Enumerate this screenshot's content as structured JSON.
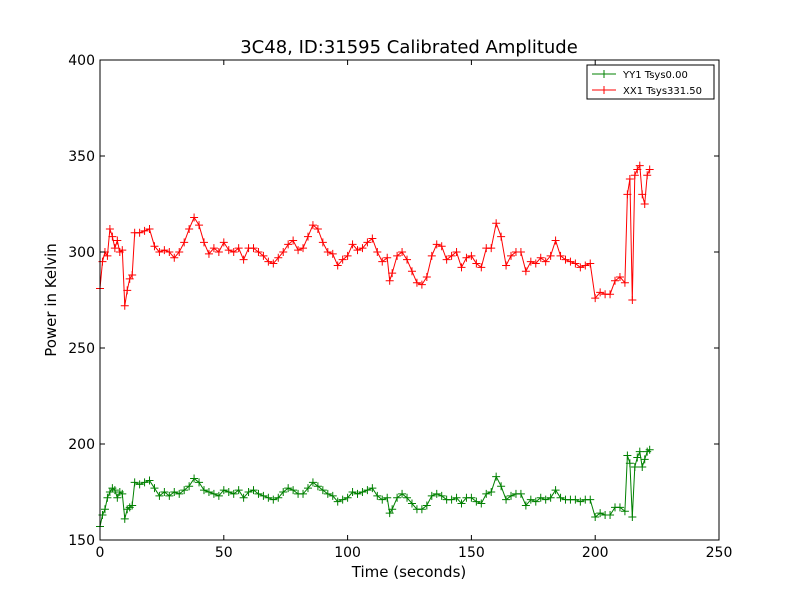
{
  "chart_data": {
    "type": "line",
    "title": "3C48, ID:31595 Calibrated Amplitude",
    "xlabel": "Time (seconds)",
    "ylabel": "Power in Kelvin",
    "xlim": [
      0,
      250
    ],
    "ylim": [
      150,
      400
    ],
    "xticks": [
      0,
      50,
      100,
      150,
      200,
      250
    ],
    "yticks": [
      150,
      200,
      250,
      300,
      350,
      400
    ],
    "xtick_labels": [
      "0",
      "50",
      "100",
      "150",
      "200",
      "250"
    ],
    "ytick_labels": [
      "150",
      "200",
      "250",
      "300",
      "350",
      "400"
    ],
    "grid": false,
    "legend_position": "top-right",
    "marker": "plus",
    "series": [
      {
        "name": "YY1 Tsys0.00",
        "color": "#008000",
        "points": [
          [
            0,
            157
          ],
          [
            1,
            163
          ],
          [
            2,
            166
          ],
          [
            3,
            172
          ],
          [
            4,
            175
          ],
          [
            5,
            177
          ],
          [
            6,
            176
          ],
          [
            7,
            172
          ],
          [
            8,
            175
          ],
          [
            9,
            174
          ],
          [
            10,
            161
          ],
          [
            11,
            166
          ],
          [
            12,
            167
          ],
          [
            13,
            168
          ],
          [
            14,
            180
          ],
          [
            16,
            179
          ],
          [
            18,
            180
          ],
          [
            20,
            181
          ],
          [
            22,
            177
          ],
          [
            24,
            173
          ],
          [
            26,
            175
          ],
          [
            28,
            173
          ],
          [
            30,
            175
          ],
          [
            32,
            174
          ],
          [
            34,
            176
          ],
          [
            36,
            178
          ],
          [
            38,
            182
          ],
          [
            40,
            180
          ],
          [
            42,
            176
          ],
          [
            44,
            175
          ],
          [
            46,
            174
          ],
          [
            48,
            173
          ],
          [
            50,
            176
          ],
          [
            52,
            175
          ],
          [
            54,
            174
          ],
          [
            56,
            176
          ],
          [
            58,
            172
          ],
          [
            60,
            175
          ],
          [
            62,
            176
          ],
          [
            64,
            174
          ],
          [
            66,
            173
          ],
          [
            68,
            172
          ],
          [
            70,
            171
          ],
          [
            72,
            172
          ],
          [
            74,
            175
          ],
          [
            76,
            177
          ],
          [
            78,
            176
          ],
          [
            80,
            174
          ],
          [
            82,
            174
          ],
          [
            84,
            177
          ],
          [
            86,
            180
          ],
          [
            88,
            178
          ],
          [
            90,
            176
          ],
          [
            92,
            174
          ],
          [
            94,
            173
          ],
          [
            96,
            170
          ],
          [
            98,
            171
          ],
          [
            100,
            172
          ],
          [
            102,
            175
          ],
          [
            104,
            174
          ],
          [
            106,
            175
          ],
          [
            108,
            176
          ],
          [
            110,
            177
          ],
          [
            112,
            173
          ],
          [
            114,
            171
          ],
          [
            116,
            172
          ],
          [
            117,
            164
          ],
          [
            118,
            166
          ],
          [
            120,
            172
          ],
          [
            122,
            174
          ],
          [
            124,
            172
          ],
          [
            126,
            169
          ],
          [
            128,
            166
          ],
          [
            130,
            166
          ],
          [
            132,
            168
          ],
          [
            134,
            173
          ],
          [
            136,
            174
          ],
          [
            138,
            173
          ],
          [
            140,
            171
          ],
          [
            142,
            171
          ],
          [
            144,
            172
          ],
          [
            146,
            169
          ],
          [
            148,
            172
          ],
          [
            150,
            172
          ],
          [
            152,
            170
          ],
          [
            154,
            169
          ],
          [
            156,
            174
          ],
          [
            158,
            175
          ],
          [
            160,
            183
          ],
          [
            162,
            178
          ],
          [
            164,
            171
          ],
          [
            166,
            173
          ],
          [
            168,
            174
          ],
          [
            170,
            174
          ],
          [
            172,
            168
          ],
          [
            174,
            171
          ],
          [
            176,
            170
          ],
          [
            178,
            172
          ],
          [
            180,
            171
          ],
          [
            182,
            172
          ],
          [
            184,
            176
          ],
          [
            186,
            172
          ],
          [
            188,
            171
          ],
          [
            190,
            171
          ],
          [
            192,
            171
          ],
          [
            194,
            170
          ],
          [
            196,
            171
          ],
          [
            198,
            171
          ],
          [
            200,
            162
          ],
          [
            202,
            164
          ],
          [
            204,
            163
          ],
          [
            206,
            163
          ],
          [
            208,
            167
          ],
          [
            210,
            167
          ],
          [
            212,
            165
          ],
          [
            213,
            194
          ],
          [
            214,
            190
          ],
          [
            215,
            162
          ],
          [
            216,
            188
          ],
          [
            217,
            193
          ],
          [
            218,
            196
          ],
          [
            219,
            188
          ],
          [
            220,
            192
          ],
          [
            221,
            196
          ],
          [
            222,
            197
          ]
        ]
      },
      {
        "name": "XX1 Tsys331.50",
        "color": "#ff0000",
        "points": [
          [
            0,
            281
          ],
          [
            1,
            295
          ],
          [
            2,
            300
          ],
          [
            3,
            298
          ],
          [
            4,
            312
          ],
          [
            5,
            308
          ],
          [
            6,
            302
          ],
          [
            7,
            306
          ],
          [
            8,
            300
          ],
          [
            9,
            301
          ],
          [
            10,
            272
          ],
          [
            11,
            280
          ],
          [
            12,
            286
          ],
          [
            13,
            288
          ],
          [
            14,
            310
          ],
          [
            16,
            310
          ],
          [
            18,
            311
          ],
          [
            20,
            312
          ],
          [
            22,
            303
          ],
          [
            24,
            300
          ],
          [
            26,
            301
          ],
          [
            28,
            300
          ],
          [
            30,
            297
          ],
          [
            32,
            300
          ],
          [
            34,
            305
          ],
          [
            36,
            312
          ],
          [
            38,
            318
          ],
          [
            40,
            314
          ],
          [
            42,
            305
          ],
          [
            44,
            299
          ],
          [
            46,
            302
          ],
          [
            48,
            300
          ],
          [
            50,
            305
          ],
          [
            52,
            301
          ],
          [
            54,
            300
          ],
          [
            56,
            302
          ],
          [
            58,
            296
          ],
          [
            60,
            302
          ],
          [
            62,
            302
          ],
          [
            64,
            300
          ],
          [
            66,
            298
          ],
          [
            68,
            295
          ],
          [
            70,
            294
          ],
          [
            72,
            297
          ],
          [
            74,
            300
          ],
          [
            76,
            304
          ],
          [
            78,
            306
          ],
          [
            80,
            301
          ],
          [
            82,
            302
          ],
          [
            84,
            308
          ],
          [
            86,
            314
          ],
          [
            88,
            312
          ],
          [
            90,
            305
          ],
          [
            92,
            300
          ],
          [
            94,
            299
          ],
          [
            96,
            293
          ],
          [
            98,
            296
          ],
          [
            100,
            298
          ],
          [
            102,
            304
          ],
          [
            104,
            301
          ],
          [
            106,
            302
          ],
          [
            108,
            305
          ],
          [
            110,
            307
          ],
          [
            112,
            300
          ],
          [
            114,
            295
          ],
          [
            116,
            297
          ],
          [
            117,
            285
          ],
          [
            118,
            289
          ],
          [
            120,
            298
          ],
          [
            122,
            300
          ],
          [
            124,
            296
          ],
          [
            126,
            290
          ],
          [
            128,
            284
          ],
          [
            130,
            283
          ],
          [
            132,
            287
          ],
          [
            134,
            298
          ],
          [
            136,
            304
          ],
          [
            138,
            303
          ],
          [
            140,
            296
          ],
          [
            142,
            298
          ],
          [
            144,
            300
          ],
          [
            146,
            292
          ],
          [
            148,
            297
          ],
          [
            150,
            298
          ],
          [
            152,
            294
          ],
          [
            154,
            292
          ],
          [
            156,
            302
          ],
          [
            158,
            302
          ],
          [
            160,
            315
          ],
          [
            162,
            308
          ],
          [
            164,
            293
          ],
          [
            166,
            298
          ],
          [
            168,
            300
          ],
          [
            170,
            300
          ],
          [
            172,
            290
          ],
          [
            174,
            295
          ],
          [
            176,
            294
          ],
          [
            178,
            297
          ],
          [
            180,
            295
          ],
          [
            182,
            298
          ],
          [
            184,
            306
          ],
          [
            186,
            298
          ],
          [
            188,
            296
          ],
          [
            190,
            295
          ],
          [
            192,
            294
          ],
          [
            194,
            292
          ],
          [
            196,
            293
          ],
          [
            198,
            294
          ],
          [
            200,
            276
          ],
          [
            202,
            279
          ],
          [
            204,
            278
          ],
          [
            206,
            278
          ],
          [
            208,
            285
          ],
          [
            210,
            287
          ],
          [
            212,
            284
          ],
          [
            213,
            330
          ],
          [
            214,
            338
          ],
          [
            215,
            275
          ],
          [
            216,
            340
          ],
          [
            217,
            343
          ],
          [
            218,
            345
          ],
          [
            219,
            330
          ],
          [
            220,
            325
          ],
          [
            221,
            340
          ],
          [
            222,
            343
          ]
        ]
      }
    ]
  }
}
